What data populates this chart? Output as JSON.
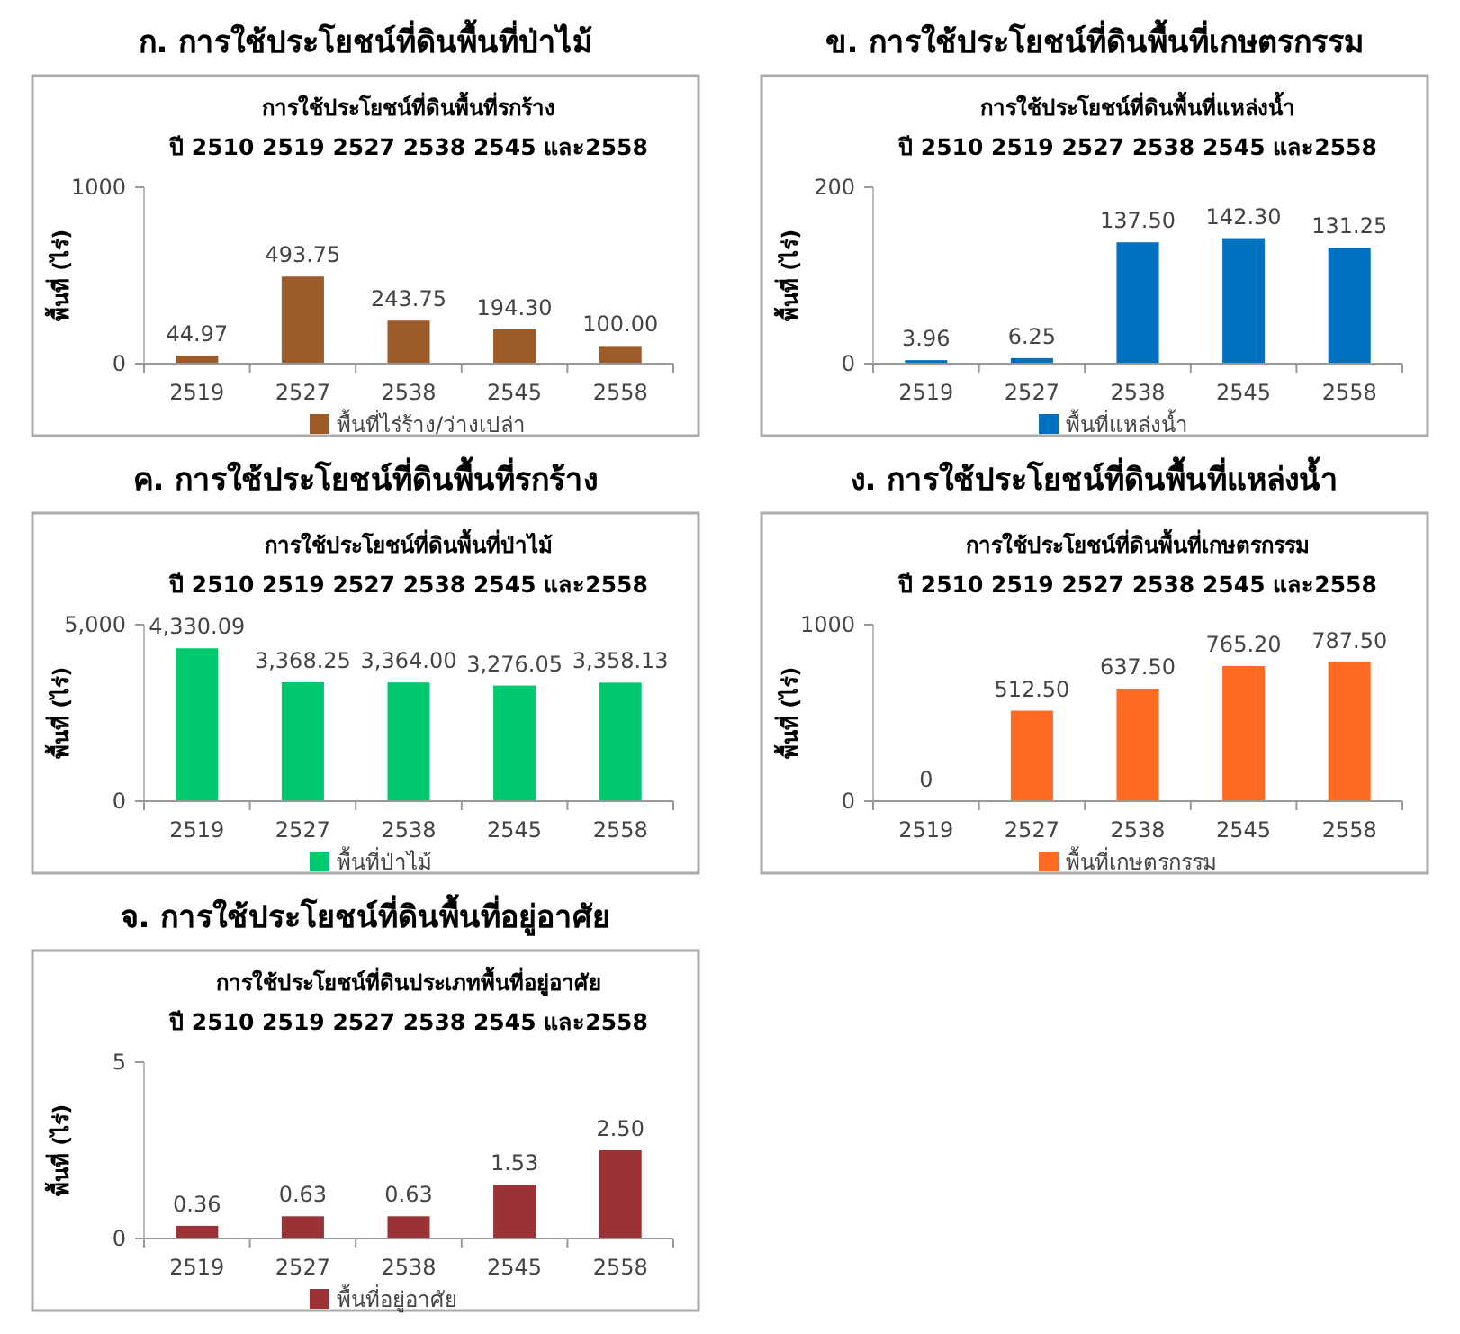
{
  "chart_data": [
    {
      "type": "bar",
      "title": "ก. การใช้ประโยชน์ที่ดินพื้นที่ป่าไม้",
      "subtitle": "การใช้ประโยชน์ที่ดินพื้นที่รกร้าง",
      "annotations": [
        "ปี 2510 2519 2527 2538 2545 และ2558"
      ],
      "ylabel": "พื้นที่ (ไร่)",
      "categories": [
        "2519",
        "2527",
        "2538",
        "2545",
        "2558"
      ],
      "series": [
        {
          "name": "พื้นที่ไร่ร้าง/ว่างเปล่า",
          "color": "#9c5b2a",
          "values": [
            44.97,
            493.75,
            243.75,
            194.3,
            100.0
          ],
          "value_labels": [
            "44.97",
            "493.75",
            "243.75",
            "194.30",
            "100.00"
          ]
        }
      ],
      "ylim": [
        0,
        1000
      ],
      "yticks": [
        0,
        1000
      ],
      "grid": false,
      "legend": "bottom"
    },
    {
      "type": "bar",
      "title": "ข. การใช้ประโยชน์ที่ดินพื้นที่เกษตรกรรม",
      "subtitle": "การใช้ประโยชน์ที่ดินพื้นที่แหล่งน้ำ",
      "annotations": [
        "ปี 2510 2519 2527 2538 2545 และ2558"
      ],
      "ylabel": "พื้นที่ (ไร่)",
      "categories": [
        "2519",
        "2527",
        "2538",
        "2545",
        "2558"
      ],
      "series": [
        {
          "name": "พื้นที่แหล่งน้ำ",
          "color": "#0070c0",
          "values": [
            3.96,
            6.25,
            137.5,
            142.3,
            131.25
          ],
          "value_labels": [
            "3.96",
            "6.25",
            "137.50",
            "142.30",
            "131.25"
          ]
        }
      ],
      "ylim": [
        0,
        200
      ],
      "yticks": [
        0,
        200
      ],
      "grid": false,
      "legend": "bottom"
    },
    {
      "type": "bar",
      "title": "ค. การใช้ประโยชน์ที่ดินพื้นที่รกร้าง",
      "subtitle": "การใช้ประโยชน์ที่ดินพื้นที่ป่าไม้",
      "annotations": [
        "ปี 2510 2519 2527 2538 2545 และ2558"
      ],
      "ylabel": "พื้นที่ (ไร่)",
      "categories": [
        "2519",
        "2527",
        "2538",
        "2545",
        "2558"
      ],
      "series": [
        {
          "name": "พื้นที่ป่าไม้",
          "color": "#00c86e",
          "values": [
            4330.09,
            3368.25,
            3364.0,
            3276.05,
            3358.13
          ],
          "value_labels": [
            "4,330.09",
            "3,368.25",
            "3,364.00",
            "3,276.05",
            "3,358.13"
          ]
        }
      ],
      "ylim": [
        0,
        5000
      ],
      "yticks": [
        0,
        {
          "value": 5000,
          "label": "5,000"
        }
      ],
      "grid": false,
      "legend": "bottom"
    },
    {
      "type": "bar",
      "title": "ง. การใช้ประโยชน์ที่ดินพื้นที่แหล่งน้ำ",
      "subtitle": "การใช้ประโยชน์ที่ดินพื้นที่เกษตรกรรม",
      "annotations": [
        "ปี 2510 2519 2527 2538 2545 และ2558"
      ],
      "ylabel": "พื้นที่ (ไร่)",
      "categories": [
        "2519",
        "2527",
        "2538",
        "2545",
        "2558"
      ],
      "series": [
        {
          "name": "พื้นที่เกษตรกรรม",
          "color": "#ff6a22",
          "values": [
            0,
            512.5,
            637.5,
            765.2,
            787.5
          ],
          "value_labels": [
            "0",
            "512.50",
            "637.50",
            "765.20",
            "787.50"
          ]
        }
      ],
      "ylim": [
        0,
        1000
      ],
      "yticks": [
        0,
        1000
      ],
      "grid": false,
      "legend": "bottom"
    },
    {
      "type": "bar",
      "title": "จ. การใช้ประโยชน์ที่ดินพื้นที่อยู่อาศัย",
      "subtitle": "การใช้ประโยชน์ที่ดินประเภทพื้นที่อยู่อาศัย",
      "annotations": [
        "ปี 2510 2519 2527 2538 2545 และ2558"
      ],
      "ylabel": "พื้นที่ (ไร่)",
      "categories": [
        "2519",
        "2527",
        "2538",
        "2545",
        "2558"
      ],
      "series": [
        {
          "name": "พื้นที่อยู่อาศัย",
          "color": "#9b3236",
          "values": [
            0.36,
            0.63,
            0.63,
            1.53,
            2.5
          ],
          "value_labels": [
            "0.36",
            "0.63",
            "0.63",
            "1.53",
            "2.50"
          ]
        }
      ],
      "ylim": [
        0,
        5
      ],
      "yticks": [
        0,
        5
      ],
      "grid": false,
      "legend": "bottom"
    }
  ]
}
